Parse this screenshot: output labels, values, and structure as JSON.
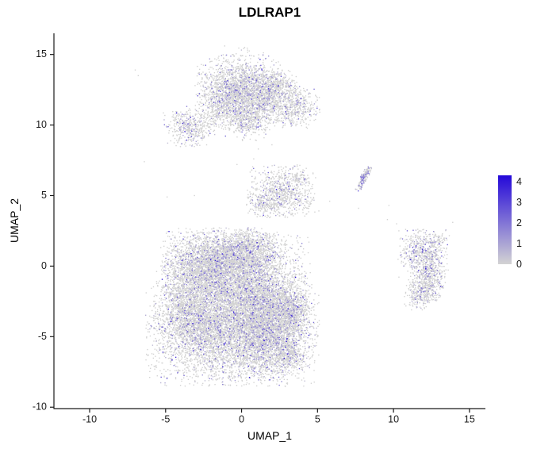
{
  "chart_data": {
    "type": "scatter",
    "title": "LDLRAP1",
    "xlabel": "UMAP_1",
    "ylabel": "UMAP_2",
    "axes": {
      "x_ticks": [
        -10,
        -5,
        0,
        5,
        10,
        15
      ],
      "y_ticks": [
        -10,
        -5,
        0,
        5,
        10,
        15
      ],
      "xlim": [
        -12.35,
        16.05
      ],
      "ylim": [
        -10.1,
        16.5
      ],
      "grid": false
    },
    "legend": {
      "ticks": [
        4,
        3,
        2,
        1,
        0
      ],
      "vmin": 0,
      "vmax": 4.3,
      "position": "right"
    },
    "colors": {
      "low": "#d3d3d3",
      "high": "#2408d9",
      "axis": "#1a1a1a",
      "background": "#ffffff"
    },
    "point_size": 1.4,
    "expression_fraction": 0.15,
    "clusters": [
      {
        "name": "top-main",
        "cx": -0.2,
        "cy": 12.8,
        "sx": 1.3,
        "sy": 1.0,
        "n": 1600,
        "ef": 0.17
      },
      {
        "name": "top-right-lobe",
        "cx": 1.3,
        "cy": 11.8,
        "sx": 1.1,
        "sy": 0.9,
        "n": 900,
        "ef": 0.17
      },
      {
        "name": "top-left-lobe",
        "cx": -1.2,
        "cy": 11.3,
        "sx": 0.8,
        "sy": 0.8,
        "n": 500,
        "ef": 0.15
      },
      {
        "name": "top-lower-neck",
        "cx": 0.4,
        "cy": 10.2,
        "sx": 0.7,
        "sy": 0.6,
        "n": 350,
        "ef": 0.15
      },
      {
        "name": "top-left-blob",
        "cx": -3.4,
        "cy": 9.9,
        "sx": 0.8,
        "sy": 0.65,
        "n": 450,
        "ef": 0.14
      },
      {
        "name": "top-right-blob",
        "cx": 3.5,
        "cy": 11.3,
        "sx": 0.8,
        "sy": 0.7,
        "n": 450,
        "ef": 0.15
      },
      {
        "name": "top-bridge",
        "cx": 2.5,
        "cy": 12.9,
        "sx": 0.6,
        "sy": 0.5,
        "n": 250,
        "ef": 0.15
      },
      {
        "name": "top-sparse",
        "cx": 0.3,
        "cy": 15.0,
        "sx": 0.8,
        "sy": 0.3,
        "n": 25,
        "ef": 0.1
      },
      {
        "name": "mid-cluster",
        "cx": 2.6,
        "cy": 5.3,
        "sx": 1.05,
        "sy": 0.85,
        "n": 800,
        "ef": 0.16
      },
      {
        "name": "mid-tail",
        "cx": 1.4,
        "cy": 4.4,
        "sx": 0.5,
        "sy": 0.4,
        "n": 150,
        "ef": 0.15
      },
      {
        "name": "mid-trail-right",
        "cx": 4.3,
        "cy": 4.2,
        "sx": 0.5,
        "sy": 0.4,
        "n": 30,
        "ef": 0.1
      },
      {
        "name": "mid-speck",
        "cx": 3.9,
        "cy": 6.3,
        "sx": 0.3,
        "sy": 0.25,
        "n": 40,
        "ef": 0.1
      },
      {
        "name": "diag-streak",
        "cx": 8.1,
        "cy": 6.3,
        "sx": 0.5,
        "sy": 0.13,
        "rot": 65,
        "n": 160,
        "ef": 0.45
      },
      {
        "name": "main-upper-left",
        "cx": -1.8,
        "cy": 0.3,
        "sx": 1.6,
        "sy": 1.1,
        "n": 2600,
        "ef": 0.15
      },
      {
        "name": "main-center",
        "cx": -0.2,
        "cy": -1.5,
        "sx": 2.2,
        "sy": 1.8,
        "n": 4200,
        "ef": 0.15
      },
      {
        "name": "main-bottom",
        "cx": -0.6,
        "cy": -4.8,
        "sx": 2.6,
        "sy": 1.7,
        "n": 5000,
        "ef": 0.15
      },
      {
        "name": "main-right",
        "cx": 1.8,
        "cy": -4.0,
        "sx": 1.1,
        "sy": 1.8,
        "n": 2400,
        "ef": 0.15
      },
      {
        "name": "main-left-edge",
        "cx": -3.6,
        "cy": -3.0,
        "sx": 1.0,
        "sy": 1.5,
        "n": 1200,
        "ef": 0.13
      },
      {
        "name": "main-top-cap",
        "cx": 0.6,
        "cy": 1.2,
        "sx": 1.0,
        "sy": 0.7,
        "n": 700,
        "ef": 0.15
      },
      {
        "name": "main-right-bump",
        "cx": 3.3,
        "cy": -3.3,
        "sx": 0.55,
        "sy": 0.8,
        "n": 500,
        "ef": 0.16
      },
      {
        "name": "main-br-nub",
        "cx": 3.2,
        "cy": -6.3,
        "sx": 0.5,
        "sy": 0.5,
        "n": 260,
        "ef": 0.15
      },
      {
        "name": "right-upper",
        "cx": 11.9,
        "cy": 0.9,
        "sx": 0.75,
        "sy": 0.8,
        "n": 550,
        "ef": 0.2
      },
      {
        "name": "right-middle",
        "cx": 12.4,
        "cy": -0.7,
        "sx": 0.55,
        "sy": 0.8,
        "n": 420,
        "ef": 0.2
      },
      {
        "name": "right-lower",
        "cx": 11.8,
        "cy": -1.9,
        "sx": 0.5,
        "sy": 0.55,
        "n": 280,
        "ef": 0.2
      },
      {
        "name": "right-top-sparse",
        "cx": 12.8,
        "cy": 1.8,
        "sx": 0.4,
        "sy": 0.3,
        "n": 60,
        "ef": 0.15
      }
    ],
    "outliers": [
      [
        -7.0,
        13.9
      ],
      [
        -6.8,
        13.5
      ],
      [
        -6.4,
        7.4
      ],
      [
        -3.1,
        5.0
      ],
      [
        -4.9,
        4.9
      ],
      [
        9.7,
        4.3
      ],
      [
        9.6,
        3.3
      ],
      [
        10.2,
        3.0
      ],
      [
        13.9,
        3.1
      ],
      [
        13.2,
        2.2
      ],
      [
        10.8,
        2.6
      ],
      [
        7.7,
        4.1
      ],
      [
        5.8,
        4.6
      ],
      [
        1.1,
        8.3
      ],
      [
        2.0,
        8.6
      ],
      [
        -0.3,
        7.2
      ],
      [
        0.8,
        7.6
      ],
      [
        4.7,
        6.6
      ]
    ]
  }
}
